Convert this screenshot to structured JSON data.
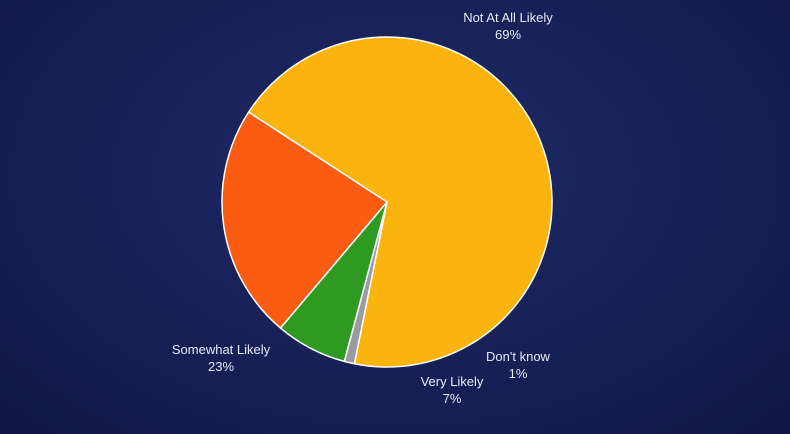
{
  "chart_data": {
    "type": "pie",
    "title": "",
    "slices": [
      {
        "label": "Not At All Likely",
        "value_label": "69%",
        "value": 69,
        "color": "#fbb40e"
      },
      {
        "label": "Don't know",
        "value_label": "1%",
        "value": 1,
        "color": "#9a9aa4"
      },
      {
        "label": "Very Likely",
        "value_label": "7%",
        "value": 7,
        "color": "#2e9a22"
      },
      {
        "label": "Somewhat Likely",
        "value_label": "23%",
        "value": 23,
        "color": "#fb5c11"
      }
    ],
    "legend": "none",
    "slice_border_color": "#ffffff",
    "background_color": "#172056"
  }
}
